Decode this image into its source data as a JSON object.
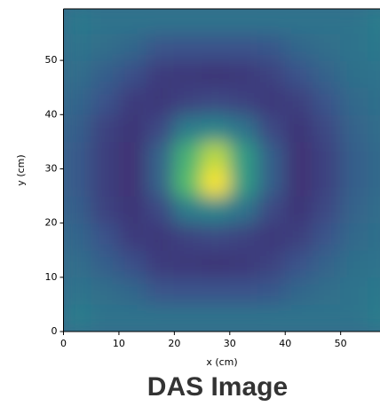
{
  "chart_data": {
    "type": "heatmap",
    "title": "DAS Image",
    "x_label": "x (cm)",
    "y_label": "y (cm)",
    "xlim": [
      0,
      57.1
    ],
    "ylim": [
      0,
      59.5
    ],
    "xticks": [
      0,
      10,
      20,
      30,
      40,
      50
    ],
    "yticks": [
      0,
      10,
      20,
      30,
      40,
      50
    ],
    "xbins": [
      0,
      5,
      10,
      15,
      20,
      25,
      30,
      35,
      40,
      45,
      50,
      55,
      60
    ],
    "ybins": [
      0,
      5,
      10,
      15,
      20,
      25,
      30,
      35,
      40,
      45,
      50,
      55,
      60
    ],
    "colormap": "viridis",
    "values": [
      [
        0.42,
        0.38,
        0.38,
        0.38,
        0.38,
        0.38,
        0.38,
        0.38,
        0.38,
        0.38,
        0.38,
        0.42
      ],
      [
        0.38,
        0.36,
        0.33,
        0.26,
        0.25,
        0.25,
        0.25,
        0.27,
        0.33,
        0.36,
        0.38,
        0.4
      ],
      [
        0.36,
        0.3,
        0.24,
        0.18,
        0.17,
        0.16,
        0.17,
        0.2,
        0.25,
        0.32,
        0.37,
        0.38
      ],
      [
        0.33,
        0.25,
        0.18,
        0.17,
        0.2,
        0.22,
        0.2,
        0.17,
        0.19,
        0.26,
        0.34,
        0.37
      ],
      [
        0.3,
        0.2,
        0.16,
        0.22,
        0.42,
        0.45,
        0.38,
        0.22,
        0.16,
        0.22,
        0.32,
        0.36
      ],
      [
        0.28,
        0.19,
        0.15,
        0.32,
        0.7,
        1.0,
        0.55,
        0.3,
        0.15,
        0.2,
        0.3,
        0.35
      ],
      [
        0.28,
        0.19,
        0.15,
        0.32,
        0.65,
        0.9,
        0.55,
        0.3,
        0.15,
        0.2,
        0.3,
        0.35
      ],
      [
        0.3,
        0.2,
        0.16,
        0.22,
        0.42,
        0.45,
        0.38,
        0.22,
        0.16,
        0.22,
        0.32,
        0.36
      ],
      [
        0.33,
        0.25,
        0.18,
        0.17,
        0.2,
        0.22,
        0.2,
        0.17,
        0.19,
        0.26,
        0.34,
        0.37
      ],
      [
        0.36,
        0.3,
        0.24,
        0.18,
        0.17,
        0.16,
        0.17,
        0.2,
        0.25,
        0.32,
        0.37,
        0.38
      ],
      [
        0.38,
        0.36,
        0.33,
        0.26,
        0.25,
        0.25,
        0.25,
        0.27,
        0.33,
        0.36,
        0.38,
        0.4
      ],
      [
        0.4,
        0.38,
        0.38,
        0.38,
        0.38,
        0.38,
        0.38,
        0.38,
        0.38,
        0.38,
        0.38,
        0.42
      ]
    ]
  }
}
